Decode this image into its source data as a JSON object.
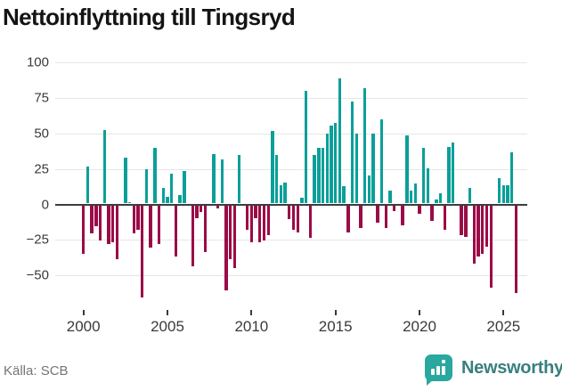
{
  "title": "Nettoinflyttning till Tingsryd",
  "source": "Källa: SCB",
  "brand": {
    "name": "Newsworthy"
  },
  "colors": {
    "positive": "#0b9f99",
    "negative": "#9b0b47",
    "grid": "#e6e6e6",
    "axis": "#3d3d3d",
    "label": "#3a3a3a",
    "muted": "#757575",
    "title": "#141414",
    "brand_icon": "#2aa79e",
    "brand_text": "#38807d"
  },
  "y_axis": {
    "ticks": [
      {
        "value": 100,
        "label": "100"
      },
      {
        "value": 75,
        "label": "75"
      },
      {
        "value": 50,
        "label": "50"
      },
      {
        "value": 25,
        "label": "25"
      },
      {
        "value": 0,
        "label": "0"
      },
      {
        "value": -25,
        "label": "−25"
      },
      {
        "value": -50,
        "label": "−50"
      }
    ]
  },
  "x_axis": {
    "ticks": [
      "2000",
      "2005",
      "2010",
      "2015",
      "2020",
      "2025"
    ]
  },
  "chart_data": {
    "type": "bar",
    "title": "Nettoinflyttning till Tingsryd",
    "xlabel": "",
    "ylabel": "",
    "ylim": [
      -70,
      108
    ],
    "grid": true,
    "legend": false,
    "x": [
      "2000Q1",
      "2000Q2",
      "2000Q3",
      "2000Q4",
      "2001Q1",
      "2001Q2",
      "2001Q3",
      "2001Q4",
      "2002Q1",
      "2002Q2",
      "2002Q3",
      "2002Q4",
      "2003Q1",
      "2003Q2",
      "2003Q3",
      "2003Q4",
      "2004Q1",
      "2004Q2",
      "2004Q3",
      "2004Q4",
      "2005Q1",
      "2005Q2",
      "2005Q3",
      "2005Q4",
      "2006Q1",
      "2006Q2",
      "2006Q3",
      "2006Q4",
      "2007Q1",
      "2007Q2",
      "2007Q3",
      "2007Q4",
      "2008Q1",
      "2008Q2",
      "2008Q3",
      "2008Q4",
      "2009Q1",
      "2009Q2",
      "2009Q3",
      "2009Q4",
      "2010Q1",
      "2010Q2",
      "2010Q3",
      "2010Q4",
      "2011Q1",
      "2011Q2",
      "2011Q3",
      "2011Q4",
      "2012Q1",
      "2012Q2",
      "2012Q3",
      "2012Q4",
      "2013Q1",
      "2013Q2",
      "2013Q3",
      "2013Q4",
      "2014Q1",
      "2014Q2",
      "2014Q3",
      "2014Q4",
      "2015Q1",
      "2015Q2",
      "2015Q3",
      "2015Q4",
      "2016Q1",
      "2016Q2",
      "2016Q3",
      "2016Q4",
      "2017Q1",
      "2017Q2",
      "2017Q3",
      "2017Q4",
      "2018Q1",
      "2018Q2",
      "2018Q3",
      "2018Q4",
      "2019Q1",
      "2019Q2",
      "2019Q3",
      "2019Q4",
      "2020Q1",
      "2020Q2",
      "2020Q3",
      "2020Q4",
      "2021Q1",
      "2021Q2",
      "2021Q3",
      "2021Q4",
      "2022Q1",
      "2022Q2",
      "2022Q3",
      "2022Q4",
      "2023Q1",
      "2023Q2",
      "2023Q3",
      "2023Q4",
      "2024Q1",
      "2024Q2",
      "2024Q3",
      "2024Q4",
      "2025Q1",
      "2025Q2",
      "2025Q3",
      "2025Q4"
    ],
    "values": [
      -34,
      26,
      -20,
      -15,
      -25,
      52,
      -27,
      -26,
      -38,
      0,
      32,
      1,
      -20,
      -17,
      -65,
      24,
      -30,
      39,
      -27,
      11,
      5,
      21,
      -36,
      6,
      23,
      0,
      -43,
      -9,
      -5,
      -33,
      0,
      35,
      -2,
      31,
      -60,
      -38,
      -44,
      34,
      0,
      -17,
      -26,
      -9,
      -26,
      -25,
      -21,
      51,
      34,
      13,
      15,
      -10,
      -17,
      -19,
      4,
      79,
      -23,
      34,
      39,
      39,
      49,
      55,
      57,
      88,
      12,
      -19,
      72,
      49,
      -16,
      81,
      20,
      49,
      -12,
      59,
      -16,
      9,
      -4,
      0,
      -14,
      48,
      9,
      14,
      -6,
      39,
      25,
      -11,
      3,
      7,
      -17,
      40,
      43,
      0,
      -21,
      -22,
      11,
      -41,
      -36,
      -34,
      -29,
      -58,
      0,
      18,
      13,
      13,
      36,
      -62
    ]
  }
}
